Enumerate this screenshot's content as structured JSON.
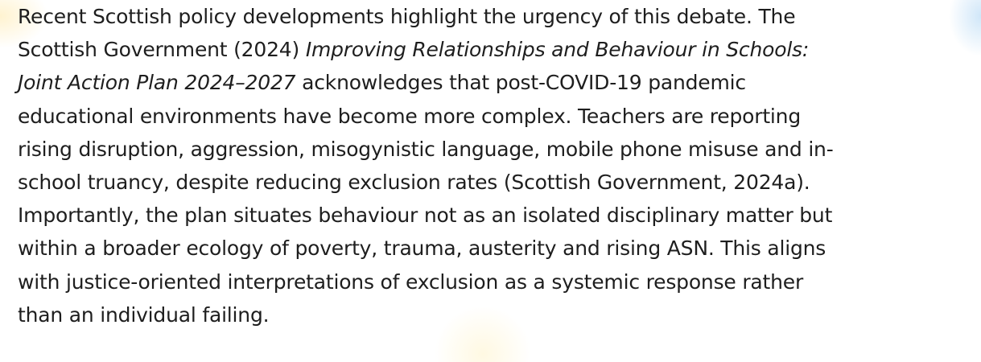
{
  "paragraph": {
    "lines": [
      {
        "text": "Recent Scottish policy developments highlight the urgency of this debate. The"
      },
      {
        "text": "Scottish Government (2024) ",
        "italic": "Improving Relationships and Behaviour in Schools:"
      },
      {
        "italic": "Joint Action Plan 2024–2027",
        "text": " acknowledges that post-COVID-19 pandemic",
        "italic_first": true
      },
      {
        "text": "educational environments have become more complex. Teachers are reporting"
      },
      {
        "text": "rising disruption, aggression, misogynistic language, mobile phone misuse and in-"
      },
      {
        "text": "school truancy, despite reducing exclusion rates (Scottish Government, 2024a)."
      },
      {
        "text": "Importantly, the plan situates behaviour not as an isolated disciplinary matter but"
      },
      {
        "text": "within a broader ecology of poverty, trauma, austerity and rising ASN. This aligns"
      },
      {
        "text": "with justice-oriented interpretations of exclusion as a systemic response rather"
      },
      {
        "text": "than an individual failing."
      }
    ]
  }
}
